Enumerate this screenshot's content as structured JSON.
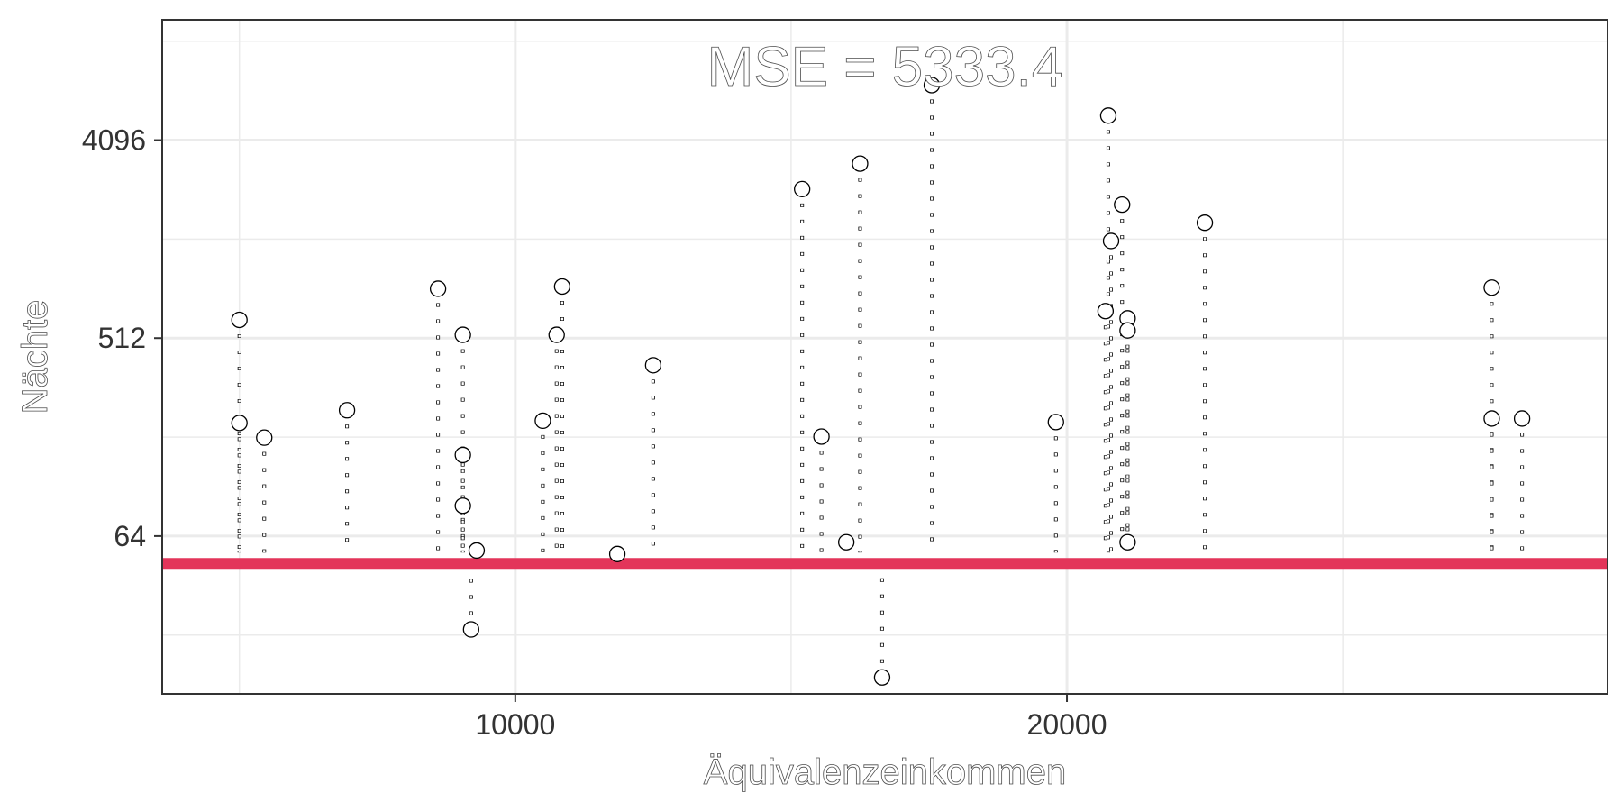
{
  "chart_data": {
    "type": "scatter",
    "title": "MSE = 5333.4",
    "xlabel": "Äquivalenzeinkommen",
    "ylabel": "Nächte",
    "y_scale": "log2",
    "xlim": [
      3600,
      29800
    ],
    "ylim": [
      12.2,
      14500
    ],
    "x_ticks": [
      10000,
      20000
    ],
    "x_tick_labels": [
      "10000",
      "20000"
    ],
    "y_ticks": [
      64,
      512,
      4096
    ],
    "y_tick_labels": [
      "64",
      "512",
      "4096"
    ],
    "grid": true,
    "reference_line": {
      "y": 48,
      "color": "#e3355a"
    },
    "colors": {
      "reference_line": "#e3355a",
      "points": "#000000",
      "grid": "#ebebeb",
      "panel_border": "#333333"
    },
    "points": [
      {
        "x": 5000,
        "y": 620
      },
      {
        "x": 5000,
        "y": 210
      },
      {
        "x": 5450,
        "y": 180
      },
      {
        "x": 6950,
        "y": 240
      },
      {
        "x": 8600,
        "y": 860
      },
      {
        "x": 9050,
        "y": 530
      },
      {
        "x": 9050,
        "y": 150
      },
      {
        "x": 9050,
        "y": 88
      },
      {
        "x": 9200,
        "y": 24
      },
      {
        "x": 9300,
        "y": 55
      },
      {
        "x": 10500,
        "y": 215
      },
      {
        "x": 10750,
        "y": 530
      },
      {
        "x": 10850,
        "y": 880
      },
      {
        "x": 11850,
        "y": 53
      },
      {
        "x": 12500,
        "y": 385
      },
      {
        "x": 15200,
        "y": 2450
      },
      {
        "x": 15550,
        "y": 182
      },
      {
        "x": 16000,
        "y": 60
      },
      {
        "x": 16250,
        "y": 3200
      },
      {
        "x": 16650,
        "y": 14.5
      },
      {
        "x": 17550,
        "y": 7300
      },
      {
        "x": 19800,
        "y": 212
      },
      {
        "x": 20700,
        "y": 680
      },
      {
        "x": 20750,
        "y": 5300
      },
      {
        "x": 20800,
        "y": 1420
      },
      {
        "x": 21000,
        "y": 2080
      },
      {
        "x": 21100,
        "y": 630
      },
      {
        "x": 21100,
        "y": 555
      },
      {
        "x": 21100,
        "y": 60
      },
      {
        "x": 22500,
        "y": 1720
      },
      {
        "x": 27700,
        "y": 870
      },
      {
        "x": 27700,
        "y": 220
      },
      {
        "x": 28250,
        "y": 220
      }
    ]
  }
}
